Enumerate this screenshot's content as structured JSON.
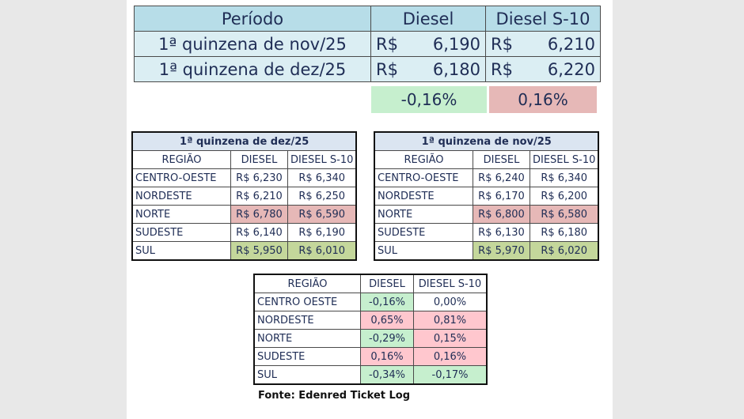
{
  "summary": {
    "headers": [
      "Período",
      "Diesel",
      "Diesel S-10"
    ],
    "rows": [
      {
        "period": "1ª quinzena de nov/25",
        "diesel_cur": "R$",
        "diesel": "6,190",
        "s10_cur": "R$",
        "s10": "6,210"
      },
      {
        "period": "1ª quinzena de dez/25",
        "diesel_cur": "R$",
        "diesel": "6,180",
        "s10_cur": "R$",
        "s10": "6,220"
      }
    ],
    "variation_diesel": "-0,16%",
    "variation_s10": "0,16%"
  },
  "dez": {
    "caption": "1ª quinzena de dez/25",
    "headers": [
      "REGIÃO",
      "DIESEL",
      "DIESEL S-10"
    ],
    "rows": [
      {
        "region": "CENTRO-OESTE",
        "diesel": "R$ 6,230",
        "s10": "R$ 6,340"
      },
      {
        "region": "NORDESTE",
        "diesel": "R$ 6,210",
        "s10": "R$ 6,250"
      },
      {
        "region": "NORTE",
        "diesel": "R$ 6,780",
        "s10": "R$ 6,590"
      },
      {
        "region": "SUDESTE",
        "diesel": "R$ 6,140",
        "s10": "R$ 6,190"
      },
      {
        "region": "SUL",
        "diesel": "R$ 5,950",
        "s10": "R$ 6,010"
      }
    ]
  },
  "nov": {
    "caption": "1ª quinzena de nov/25",
    "headers": [
      "REGIÃO",
      "DIESEL",
      "DIESEL S-10"
    ],
    "rows": [
      {
        "region": "CENTRO-OESTE",
        "diesel": "R$ 6,240",
        "s10": "R$ 6,340"
      },
      {
        "region": "NORDESTE",
        "diesel": "R$ 6,170",
        "s10": "R$ 6,200"
      },
      {
        "region": "NORTE",
        "diesel": "R$ 6,800",
        "s10": "R$ 6,580"
      },
      {
        "region": "SUDESTE",
        "diesel": "R$ 6,130",
        "s10": "R$ 6,180"
      },
      {
        "region": "SUL",
        "diesel": "R$ 5,970",
        "s10": "R$ 6,020"
      }
    ]
  },
  "variation": {
    "headers": [
      "REGIÃO",
      "DIESEL",
      "DIESEL S-10"
    ],
    "rows": [
      {
        "region": "CENTRO OESTE",
        "diesel": "-0,16%",
        "s10": "0,00%"
      },
      {
        "region": "NORDESTE",
        "diesel": "0,65%",
        "s10": "0,81%"
      },
      {
        "region": "NORTE",
        "diesel": "-0,29%",
        "s10": "0,15%"
      },
      {
        "region": "SUDESTE",
        "diesel": "0,16%",
        "s10": "0,16%"
      },
      {
        "region": "SUL",
        "diesel": "-0,34%",
        "s10": "-0,17%"
      }
    ]
  },
  "source": "Fonte: Edenred Ticket Log",
  "colors": {
    "header_blue": "#b7dde8",
    "row_blue": "#dbeef3",
    "negative_green": "#c6efce",
    "positive_red": "#ffc7ce",
    "highest_red": "#e6b8b7",
    "lowest_green": "#c4d79b"
  }
}
